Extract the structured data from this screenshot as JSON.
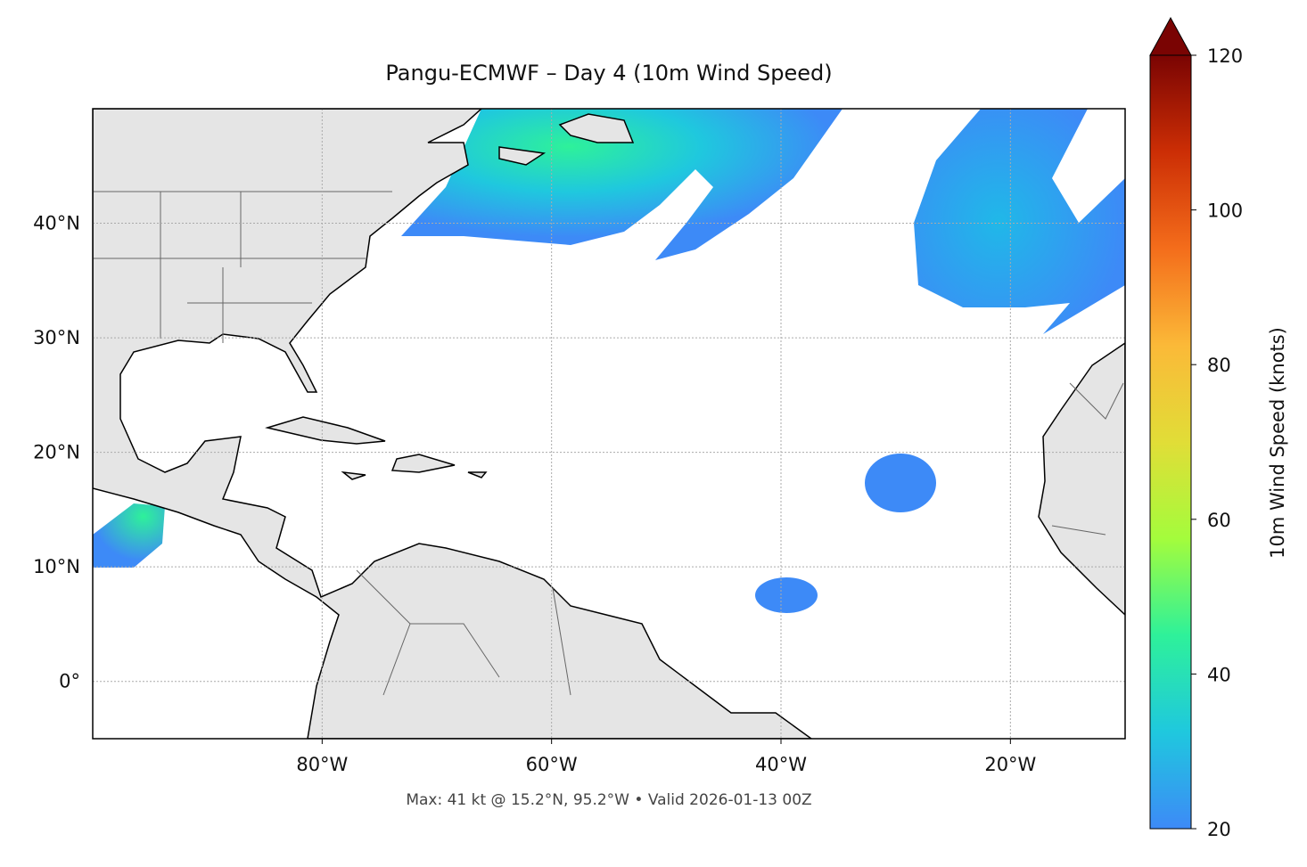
{
  "chart_data": {
    "type": "map",
    "title": "Pangu-ECMWF – Day 4 (10m Wind Speed)",
    "footnote": "Max: 41 kt @ 15.2°N, 95.2°W • Valid 2026-01-13 00Z",
    "xlim": [
      -100,
      -10
    ],
    "ylim": [
      -5,
      50
    ],
    "xticks": [
      {
        "value": -80,
        "label": "80°W"
      },
      {
        "value": -60,
        "label": "60°W"
      },
      {
        "value": -40,
        "label": "40°W"
      },
      {
        "value": -20,
        "label": "20°W"
      }
    ],
    "yticks": [
      {
        "value": 0,
        "label": "0°"
      },
      {
        "value": 10,
        "label": "10°N"
      },
      {
        "value": 20,
        "label": "20°N"
      },
      {
        "value": 30,
        "label": "30°N"
      },
      {
        "value": 40,
        "label": "40°N"
      }
    ],
    "grid": true,
    "colorbar": {
      "label": "10m Wind Speed (knots)",
      "lim": [
        20,
        120
      ],
      "ticks": [
        20,
        40,
        60,
        80,
        100,
        120
      ],
      "colormap": [
        "#3d8af7",
        "#1fc8de",
        "#2ef19a",
        "#a4fc3c",
        "#e1dd37",
        "#fbb938",
        "#f46d1b",
        "#cc2e05",
        "#7a0403"
      ]
    }
  }
}
